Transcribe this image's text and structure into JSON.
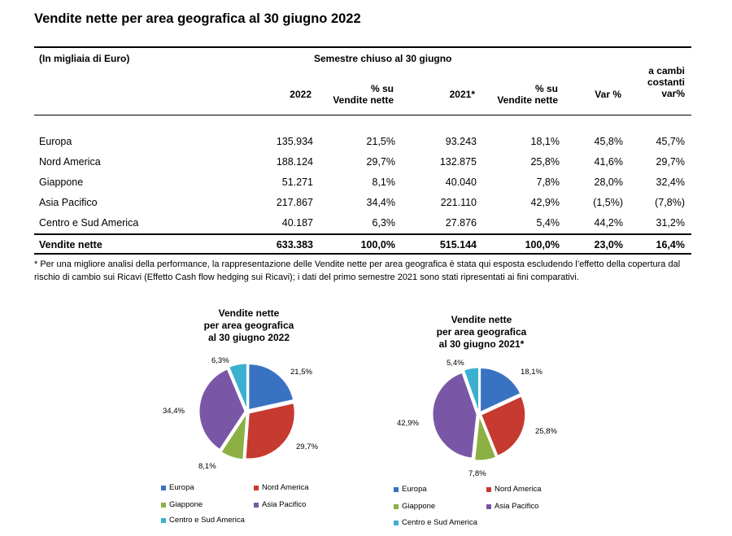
{
  "title": "Vendite nette per area geografica al 30 giugno 2022",
  "table": {
    "unit": "(In migliaia di Euro)",
    "group_header": "Semestre chiuso al 30 giugno",
    "col_2022": "2022",
    "col_pct1": [
      "% su",
      "Vendite nette"
    ],
    "col_2021": "2021*",
    "col_pct2": [
      "% su",
      "Vendite nette"
    ],
    "col_var": "Var %",
    "col_fx": [
      "a cambi",
      "costanti",
      "var%"
    ],
    "rows": [
      {
        "label": "Europa",
        "v2022": "135.934",
        "p2022": "21,5%",
        "v2021": "93.243",
        "p2021": "18,1%",
        "var": "45,8%",
        "fx": "45,7%"
      },
      {
        "label": "Nord America",
        "v2022": "188.124",
        "p2022": "29,7%",
        "v2021": "132.875",
        "p2021": "25,8%",
        "var": "41,6%",
        "fx": "29,7%"
      },
      {
        "label": "Giappone",
        "v2022": "51.271",
        "p2022": "8,1%",
        "v2021": "40.040",
        "p2021": "7,8%",
        "var": "28,0%",
        "fx": "32,4%"
      },
      {
        "label": "Asia Pacifico",
        "v2022": "217.867",
        "p2022": "34,4%",
        "v2021": "221.110",
        "p2021": "42,9%",
        "var": "(1,5%)",
        "fx": "(7,8%)"
      },
      {
        "label": "Centro e Sud America",
        "v2022": "40.187",
        "p2022": "6,3%",
        "v2021": "27.876",
        "p2021": "5,4%",
        "var": "44,2%",
        "fx": "31,2%"
      }
    ],
    "total": {
      "label": "Vendite nette",
      "v2022": "633.383",
      "p2022": "100,0%",
      "v2021": "515.144",
      "p2021": "100,0%",
      "var": "23,0%",
      "fx": "16,4%"
    }
  },
  "footnote": "* Per una migliore analisi della performance, la rappresentazione delle Vendite nette per area geografica è stata qui esposta escludendo l’effetto della copertura dal rischio di cambio sui Ricavi (Effetto Cash flow hedging sui Ricavi); i dati del primo semestre 2021 sono stati ripresentati ai fini comparativi.",
  "chart_data": [
    {
      "type": "pie",
      "title": [
        "Vendite nette",
        "per area geografica",
        "al 30 giugno 2022"
      ],
      "labels": [
        "Europa",
        "Nord America",
        "Giappone",
        "Asia Pacifico",
        "Centro e Sud America"
      ],
      "values": [
        21.5,
        29.7,
        8.1,
        34.4,
        6.3
      ],
      "value_labels": [
        "21,5%",
        "29,7%",
        "8,1%",
        "34,4%",
        "6,3%"
      ],
      "colors": [
        "#3a72c2",
        "#c63a30",
        "#8db045",
        "#7a57a6",
        "#3bb0d0"
      ],
      "legend": "bottom"
    },
    {
      "type": "pie",
      "title": [
        "Vendite nette",
        "per area geografica",
        "al 30 giugno 2021*"
      ],
      "labels": [
        "Europa",
        "Nord America",
        "Giappone",
        "Asia Pacifico",
        "Centro e Sud America"
      ],
      "values": [
        18.1,
        25.8,
        7.8,
        42.9,
        5.4
      ],
      "value_labels": [
        "18,1%",
        "25,8%",
        "7,8%",
        "42,9%",
        "5,4%"
      ],
      "colors": [
        "#3a72c2",
        "#c63a30",
        "#8db045",
        "#7a57a6",
        "#3bb0d0"
      ],
      "legend": "bottom"
    }
  ]
}
